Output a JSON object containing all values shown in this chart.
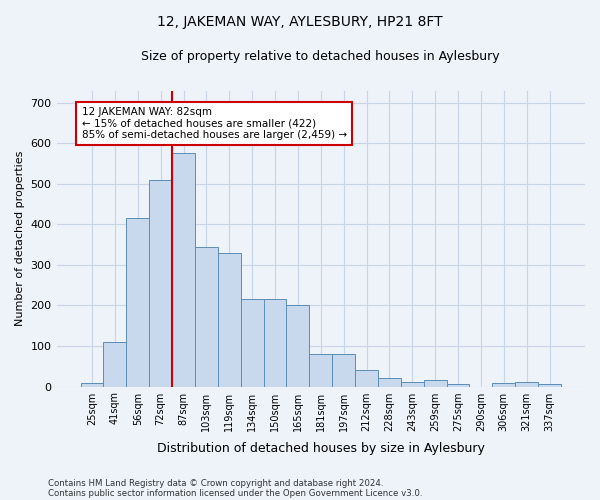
{
  "title": "12, JAKEMAN WAY, AYLESBURY, HP21 8FT",
  "subtitle": "Size of property relative to detached houses in Aylesbury",
  "xlabel": "Distribution of detached houses by size in Aylesbury",
  "ylabel": "Number of detached properties",
  "categories": [
    "25sqm",
    "41sqm",
    "56sqm",
    "72sqm",
    "87sqm",
    "103sqm",
    "119sqm",
    "134sqm",
    "150sqm",
    "165sqm",
    "181sqm",
    "197sqm",
    "212sqm",
    "228sqm",
    "243sqm",
    "259sqm",
    "275sqm",
    "290sqm",
    "306sqm",
    "321sqm",
    "337sqm"
  ],
  "values": [
    8,
    110,
    415,
    510,
    575,
    345,
    330,
    215,
    215,
    200,
    80,
    80,
    40,
    22,
    12,
    15,
    6,
    0,
    8,
    10,
    7
  ],
  "bar_color": "#c9d9ed",
  "bar_edge_color": "#5b8db8",
  "grid_color": "#c8d4e8",
  "annotation_text_line1": "12 JAKEMAN WAY: 82sqm",
  "annotation_text_line2": "← 15% of detached houses are smaller (422)",
  "annotation_text_line3": "85% of semi-detached houses are larger (2,459) →",
  "annotation_box_color": "#ffffff",
  "annotation_box_edge_color": "#cc0000",
  "red_line_color": "#cc0000",
  "footer_line1": "Contains HM Land Registry data © Crown copyright and database right 2024.",
  "footer_line2": "Contains public sector information licensed under the Open Government Licence v3.0.",
  "ylim": [
    0,
    730
  ],
  "yticks": [
    0,
    100,
    200,
    300,
    400,
    500,
    600,
    700
  ],
  "background_color": "#eef2f9",
  "title_fontsize": 10,
  "subtitle_fontsize": 9,
  "red_line_x": 3.5,
  "figwidth": 6.0,
  "figheight": 5.0
}
